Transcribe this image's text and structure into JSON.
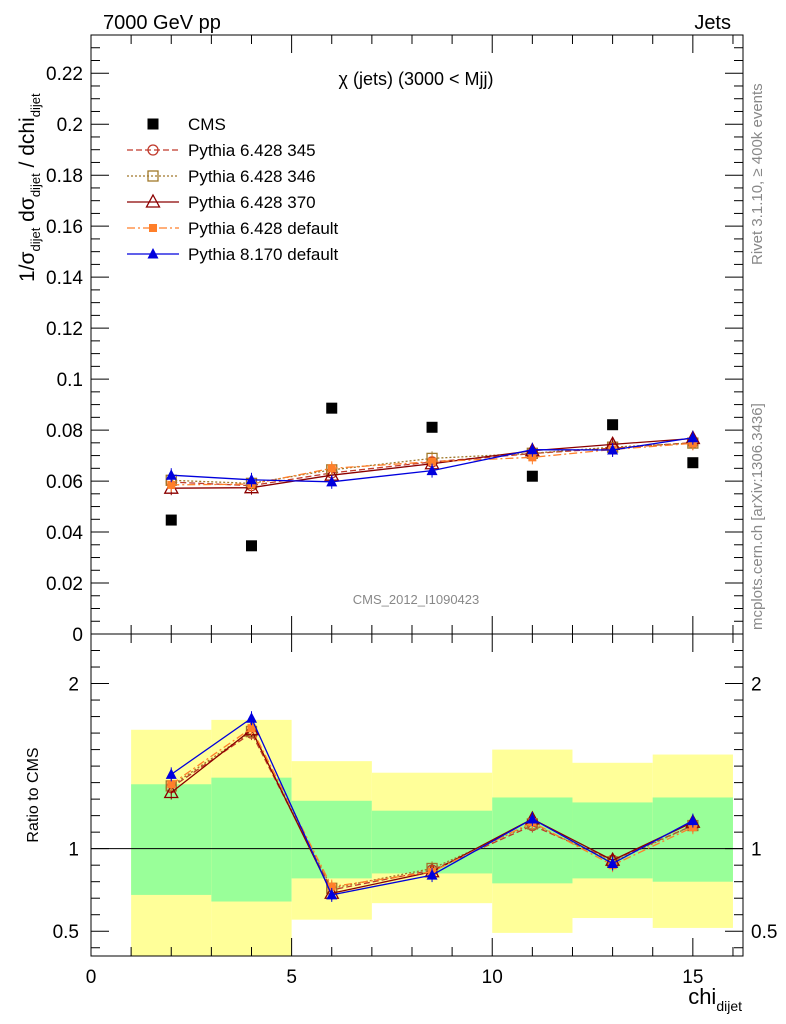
{
  "header": {
    "left": "7000 GeV pp",
    "right": "Jets"
  },
  "side_labels": {
    "rivet": "Rivet 3.1.10, ≥ 400k events",
    "mcplots": "mcplots.cern.ch [arXiv:1306.3436]"
  },
  "chart_data": [
    {
      "type": "scatter",
      "title": "χ (jets) (3000 < Mjj)",
      "watermark": "CMS_2012_I1090423",
      "ylabel": "1/σ_dijet dσ_dijet / dchi_dijet",
      "xlim": [
        0,
        16.25
      ],
      "ylim": [
        0,
        0.235
      ],
      "yticks": [
        "0",
        "0.02",
        "0.04",
        "0.06",
        "0.08",
        "0.1",
        "0.12",
        "0.14",
        "0.16",
        "0.18",
        "0.2",
        "0.22"
      ],
      "x": [
        2,
        4,
        6,
        8.5,
        11,
        13,
        15
      ],
      "series": [
        {
          "name": "CMS",
          "values": [
            0.0447,
            0.0346,
            0.0886,
            0.0811,
            0.0619,
            0.0821,
            0.0672
          ],
          "color": "#000000",
          "marker": "square-filled",
          "line": "none"
        },
        {
          "name": "Pythia 6.428 345",
          "values": [
            0.0596,
            0.0582,
            0.0632,
            0.0675,
            0.0708,
            0.0729,
            0.0751
          ],
          "color": "#c0392b",
          "marker": "circle-open",
          "line": "dashed"
        },
        {
          "name": "Pythia 6.428 346",
          "values": [
            0.0603,
            0.0591,
            0.0644,
            0.0689,
            0.0709,
            0.0733,
            0.0749
          ],
          "color": "#a0782a",
          "marker": "square-open",
          "line": "dotted"
        },
        {
          "name": "Pythia 6.428 370",
          "values": [
            0.0572,
            0.0574,
            0.0623,
            0.0668,
            0.0719,
            0.0744,
            0.0767
          ],
          "color": "#8b0000",
          "marker": "triangle-open",
          "line": "solid"
        },
        {
          "name": "Pythia 6.428 default",
          "values": [
            0.0585,
            0.0588,
            0.065,
            0.0676,
            0.0693,
            0.0724,
            0.0748
          ],
          "color": "#ff7f2a",
          "marker": "square-filled-small",
          "line": "dashdot"
        },
        {
          "name": "Pythia 8.170 default",
          "values": [
            0.0623,
            0.0605,
            0.0597,
            0.0641,
            0.0723,
            0.0722,
            0.077
          ],
          "color": "#0000dd",
          "marker": "triangle-filled",
          "line": "solid"
        }
      ]
    },
    {
      "type": "line",
      "ylabel": "Ratio to CMS",
      "xlabel": "chi_dijet",
      "xlim": [
        0,
        16.25
      ],
      "ylim": [
        0.35,
        2.3
      ],
      "xticks": [
        "0",
        "5",
        "10",
        "15"
      ],
      "yticks": [
        "0.5",
        "1",
        "2"
      ],
      "bands": [
        {
          "x0": 1,
          "x1": 3,
          "inner": [
            0.72,
            1.39
          ],
          "outer": [
            0.35,
            1.72
          ]
        },
        {
          "x0": 3,
          "x1": 5,
          "inner": [
            0.68,
            1.43
          ],
          "outer": [
            0.35,
            1.78
          ]
        },
        {
          "x0": 5,
          "x1": 7,
          "inner": [
            0.82,
            1.29
          ],
          "outer": [
            0.57,
            1.53
          ]
        },
        {
          "x0": 7,
          "x1": 10,
          "inner": [
            0.85,
            1.23
          ],
          "outer": [
            0.67,
            1.46
          ]
        },
        {
          "x0": 10,
          "x1": 12,
          "inner": [
            0.79,
            1.31
          ],
          "outer": [
            0.49,
            1.6
          ]
        },
        {
          "x0": 12,
          "x1": 14,
          "inner": [
            0.82,
            1.28
          ],
          "outer": [
            0.58,
            1.52
          ]
        },
        {
          "x0": 14,
          "x1": 16,
          "inner": [
            0.8,
            1.31
          ],
          "outer": [
            0.52,
            1.57
          ]
        }
      ],
      "x": [
        2,
        4,
        6,
        8.5,
        11,
        13,
        15
      ],
      "series": [
        {
          "name": "Pythia 6.428 345",
          "values": [
            1.37,
            1.7,
            0.75,
            0.87,
            1.14,
            0.93,
            1.14
          ],
          "color": "#c0392b",
          "marker": "circle-open",
          "line": "dashed"
        },
        {
          "name": "Pythia 6.428 346",
          "values": [
            1.38,
            1.71,
            0.76,
            0.88,
            1.15,
            0.92,
            1.14
          ],
          "color": "#a0782a",
          "marker": "square-open",
          "line": "dotted"
        },
        {
          "name": "Pythia 6.428 370",
          "values": [
            1.34,
            1.72,
            0.73,
            0.86,
            1.18,
            0.93,
            1.16
          ],
          "color": "#8b0000",
          "marker": "triangle-open",
          "line": "solid"
        },
        {
          "name": "Pythia 6.428 default",
          "values": [
            1.39,
            1.73,
            0.77,
            0.86,
            1.16,
            0.9,
            1.13
          ],
          "color": "#ff7f2a",
          "marker": "square-filled-small",
          "line": "dashdot"
        },
        {
          "name": "Pythia 8.170 default",
          "values": [
            1.45,
            1.79,
            0.72,
            0.84,
            1.18,
            0.91,
            1.17
          ],
          "color": "#0000dd",
          "marker": "triangle-filled",
          "line": "solid"
        }
      ]
    }
  ]
}
